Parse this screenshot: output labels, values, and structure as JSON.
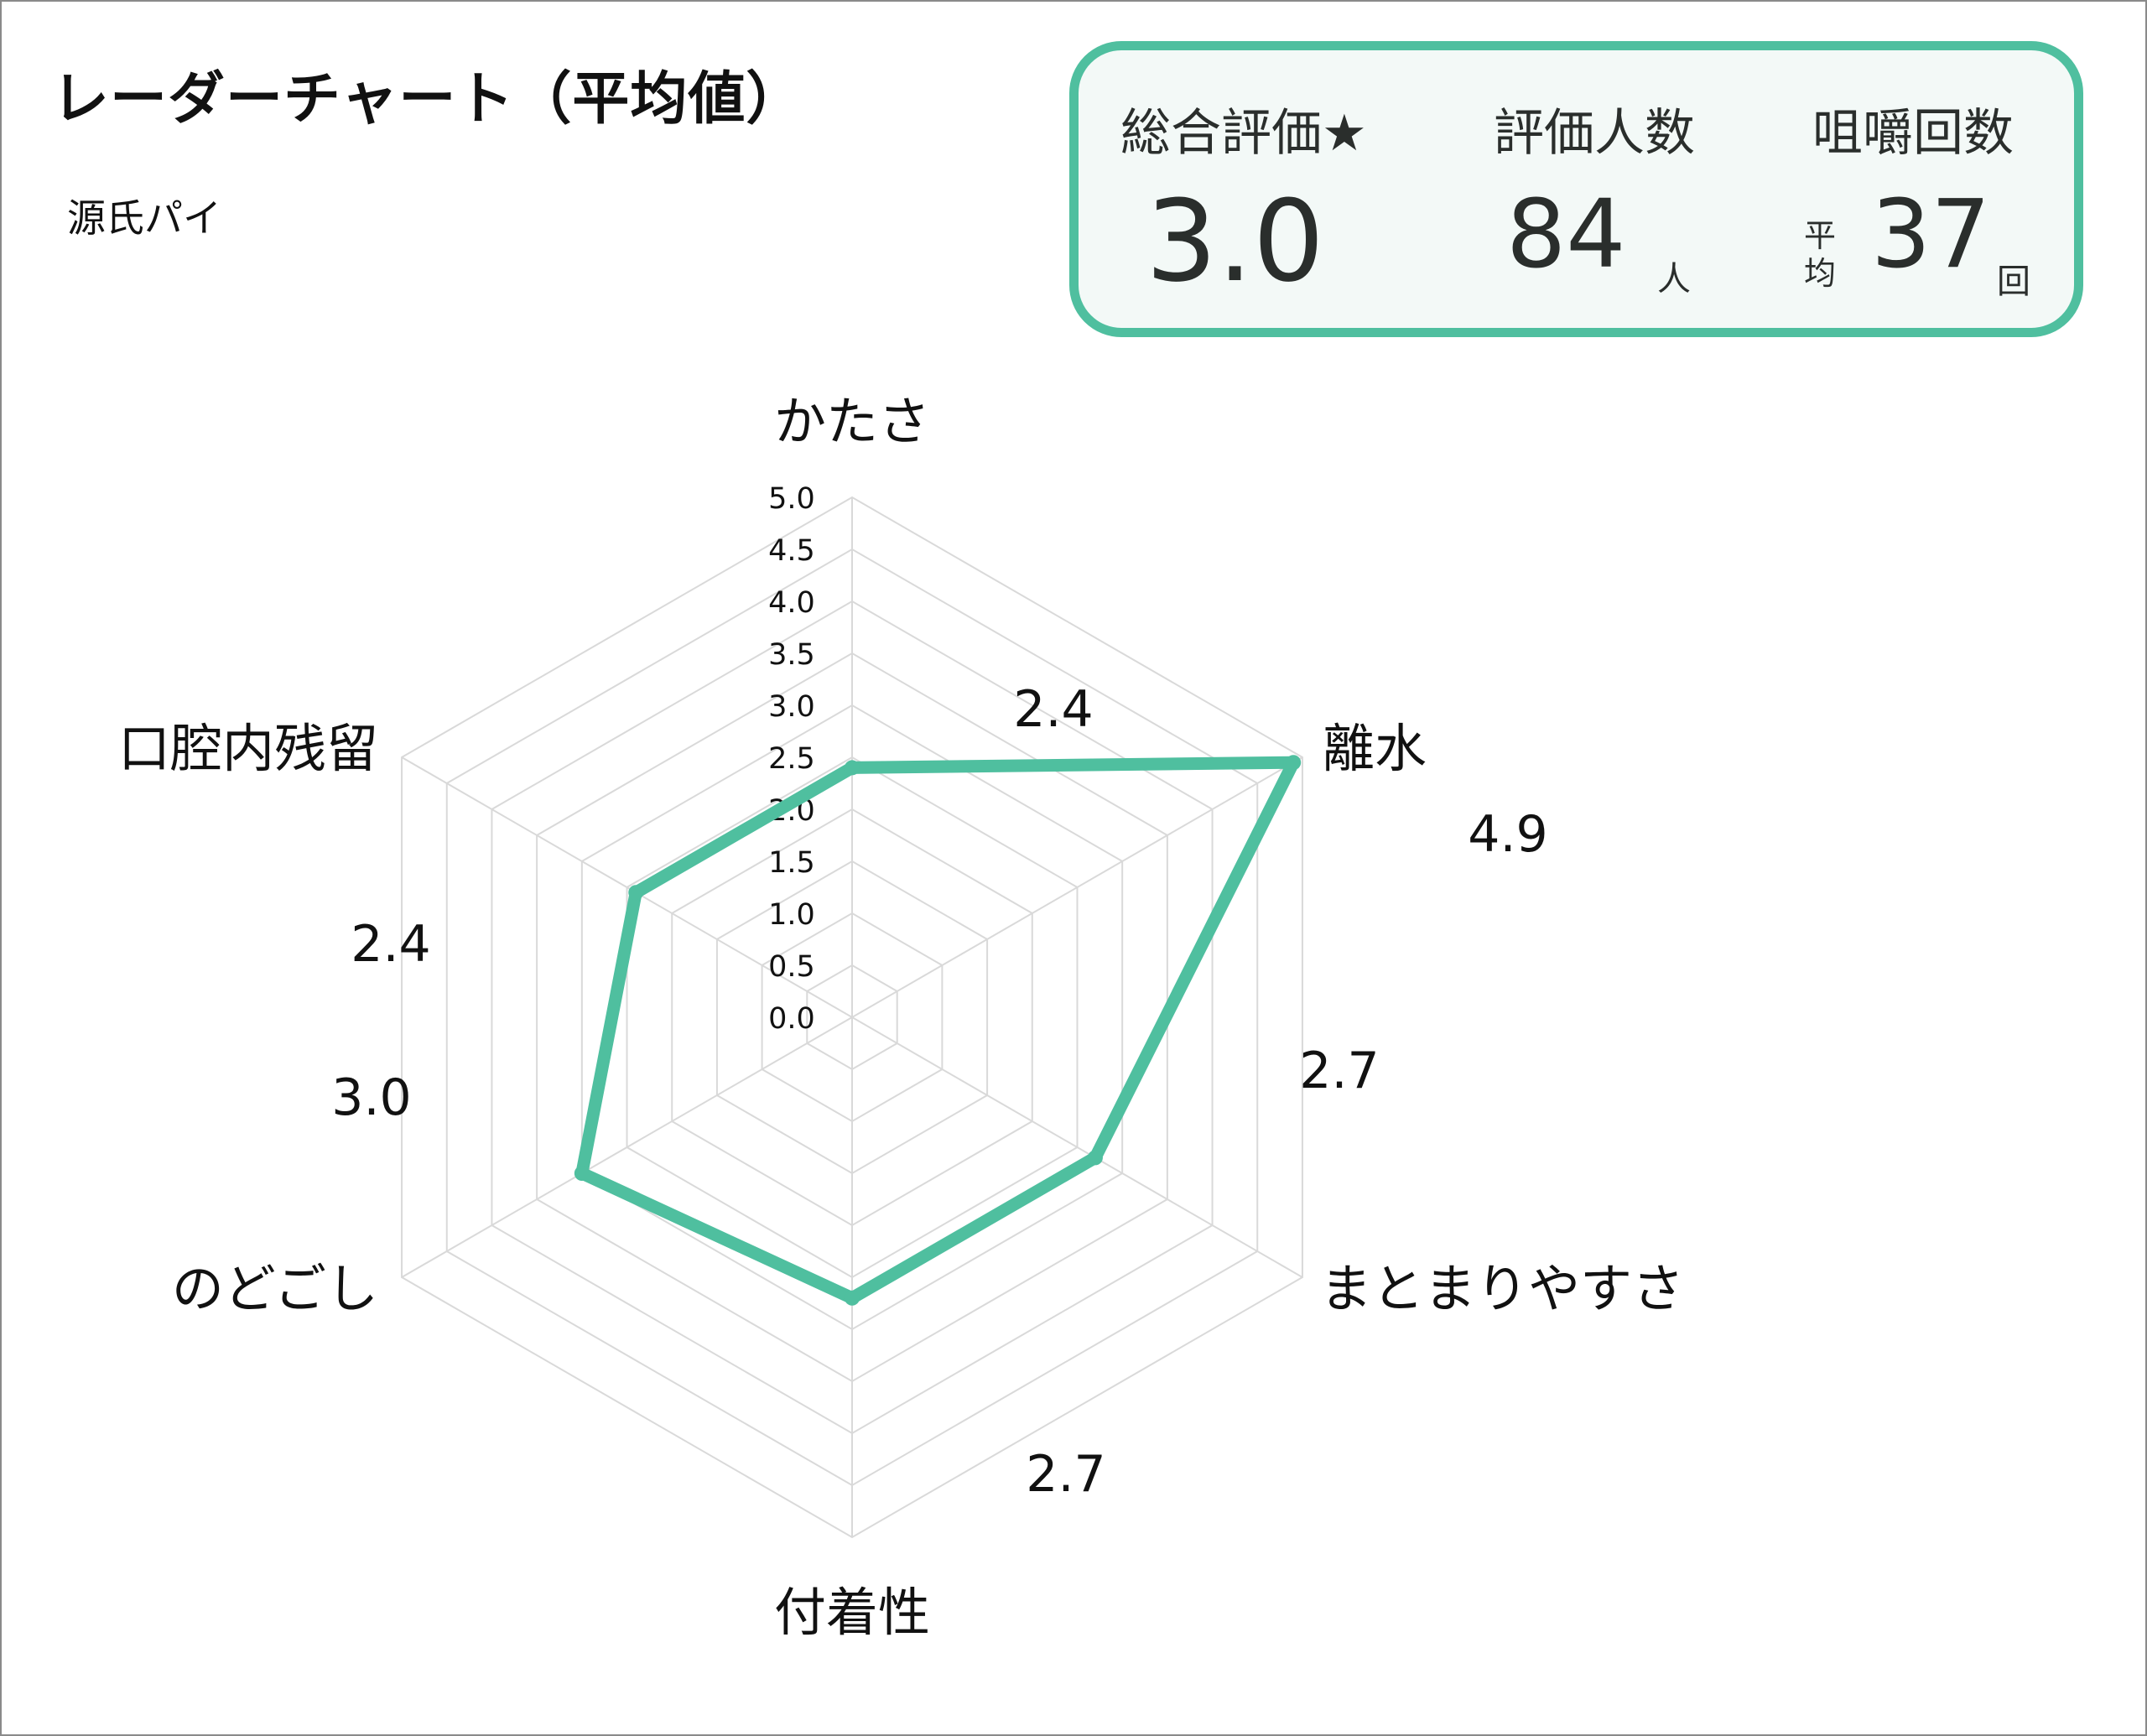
{
  "title": "レーダーチャート（平均値）",
  "subtitle": "源氏パイ",
  "summary": {
    "overall_label": "総合評価★",
    "overall_value": "3.0",
    "raters_label": "評価人数",
    "raters_value": "84",
    "raters_unit": "人",
    "chews_label": "咀嚼回数",
    "chews_prefix_1": "平",
    "chews_prefix_2": "均",
    "chews_value": "37",
    "chews_unit": "回"
  },
  "colors": {
    "accent": "#4fbf9f",
    "grid": "#d9d9d9",
    "box_bg": "#f3f9f7"
  },
  "chart_data": {
    "type": "radar",
    "title": "レーダーチャート（平均値）",
    "categories": [
      "かたさ",
      "離水",
      "まとまりやすさ",
      "付着性",
      "のどごし",
      "口腔内残留"
    ],
    "values": [
      2.4,
      4.9,
      2.7,
      2.7,
      3.0,
      2.4
    ],
    "value_labels": [
      "2.4",
      "4.9",
      "2.7",
      "2.7",
      "3.0",
      "2.4"
    ],
    "rlim": [
      0,
      5
    ],
    "ticks": [
      "0.0",
      "0.5",
      "1.0",
      "1.5",
      "2.0",
      "2.5",
      "3.0",
      "3.5",
      "4.0",
      "4.5",
      "5.0"
    ],
    "grid": true
  }
}
